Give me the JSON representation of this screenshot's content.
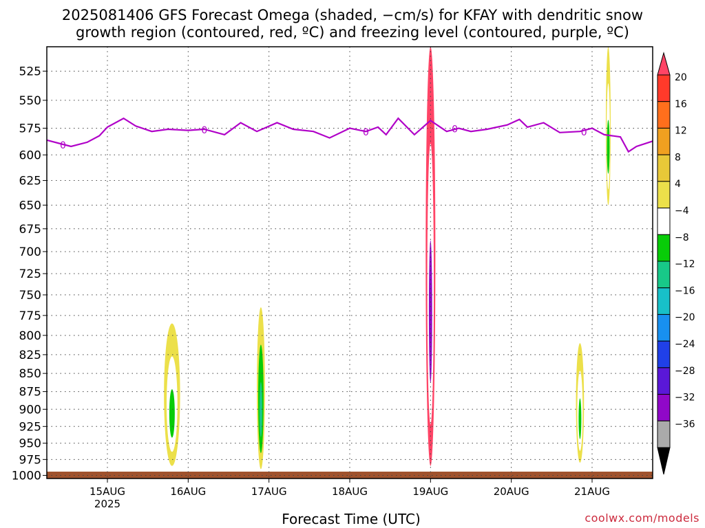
{
  "title_line1": "2025081406 GFS Forecast Omega (shaded, −cm/s) for KFAY with dendritic snow",
  "title_line2": "growth region (contoured, red, ºC) and freezing level (contoured, purple, ºC)",
  "xlabel": "Forecast Time (UTC)",
  "credit": "coolwx.com/models",
  "chart_data": {
    "type": "heatmap",
    "title": "2025081406 GFS Forecast Omega (shaded, −cm/s) for KFAY with dendritic snow growth region (contoured, red, ºC) and freezing level (contoured, purple, ºC)",
    "xlabel": "Forecast Time (UTC)",
    "ylabel": "",
    "x_ticks": [
      {
        "day": 15,
        "label": "15AUG",
        "sublabel": "2025"
      },
      {
        "day": 16,
        "label": "16AUG",
        "sublabel": ""
      },
      {
        "day": 17,
        "label": "17AUG",
        "sublabel": ""
      },
      {
        "day": 18,
        "label": "18AUG",
        "sublabel": ""
      },
      {
        "day": 19,
        "label": "19AUG",
        "sublabel": ""
      },
      {
        "day": 20,
        "label": "20AUG",
        "sublabel": ""
      },
      {
        "day": 21,
        "label": "21AUG",
        "sublabel": ""
      }
    ],
    "xlim": [
      14.25,
      21.75
    ],
    "y_ticks": [
      525,
      550,
      575,
      600,
      625,
      650,
      675,
      700,
      725,
      750,
      775,
      800,
      825,
      850,
      875,
      900,
      925,
      950,
      975,
      1000
    ],
    "ylim": [
      505,
      1005
    ],
    "y_scale": "log",
    "grid": true,
    "colorbar": {
      "labels": [
        "20",
        "16",
        "12",
        "8",
        "4",
        "−4",
        "−8",
        "−12",
        "−16",
        "−20",
        "−24",
        "−28",
        "−32",
        "−36"
      ],
      "colors": [
        "#ff4466",
        "#ff3a2a",
        "#ff6f1c",
        "#f0a020",
        "#e8c838",
        "#ece04a",
        "#ffffff",
        "#08cc08",
        "#18c888",
        "#18c0c8",
        "#1890f0",
        "#2040e8",
        "#5a18d8",
        "#9008c8",
        "#aaaaaa"
      ]
    },
    "freezing_level": {
      "label": "0",
      "color": "#b000c8",
      "x": [
        14.25,
        14.45,
        14.55,
        14.75,
        14.9,
        15.0,
        15.2,
        15.35,
        15.55,
        15.75,
        16.0,
        16.2,
        16.45,
        16.65,
        16.85,
        17.1,
        17.3,
        17.55,
        17.75,
        18.0,
        18.2,
        18.35,
        18.45,
        18.6,
        18.8,
        19.0,
        19.2,
        19.35,
        19.5,
        19.7,
        19.95,
        20.1,
        20.2,
        20.4,
        20.6,
        20.85,
        21.0,
        21.15,
        21.35,
        21.45,
        21.55,
        21.75
      ],
      "y": [
        586,
        590,
        592,
        588,
        582,
        574,
        566,
        573,
        578,
        576,
        577,
        576,
        581,
        570,
        578,
        570,
        576,
        578,
        584,
        575,
        578,
        574,
        581,
        566,
        581,
        568,
        578,
        575,
        578,
        576,
        572,
        567,
        574,
        570,
        579,
        578,
        575,
        581,
        583,
        597,
        592,
        587
      ]
    },
    "omega_shading": [
      {
        "day": 15.8,
        "p_top": 785,
        "p_bot": 985,
        "width": 0.1,
        "min": -12,
        "max": -4
      },
      {
        "day": 16.9,
        "p_top": 765,
        "p_bot": 990,
        "width": 0.05,
        "min": -16,
        "max": -4
      },
      {
        "day": 19.0,
        "p_top": 505,
        "p_bot": 985,
        "width": 0.06,
        "min": -36,
        "max": 20
      },
      {
        "day": 20.85,
        "p_top": 810,
        "p_bot": 980,
        "width": 0.05,
        "min": -12,
        "max": -4
      },
      {
        "day": 21.2,
        "p_top": 505,
        "p_bot": 650,
        "width": 0.03,
        "min": -12,
        "max": -4
      }
    ],
    "surface_band": {
      "color": "#a0522d"
    }
  }
}
